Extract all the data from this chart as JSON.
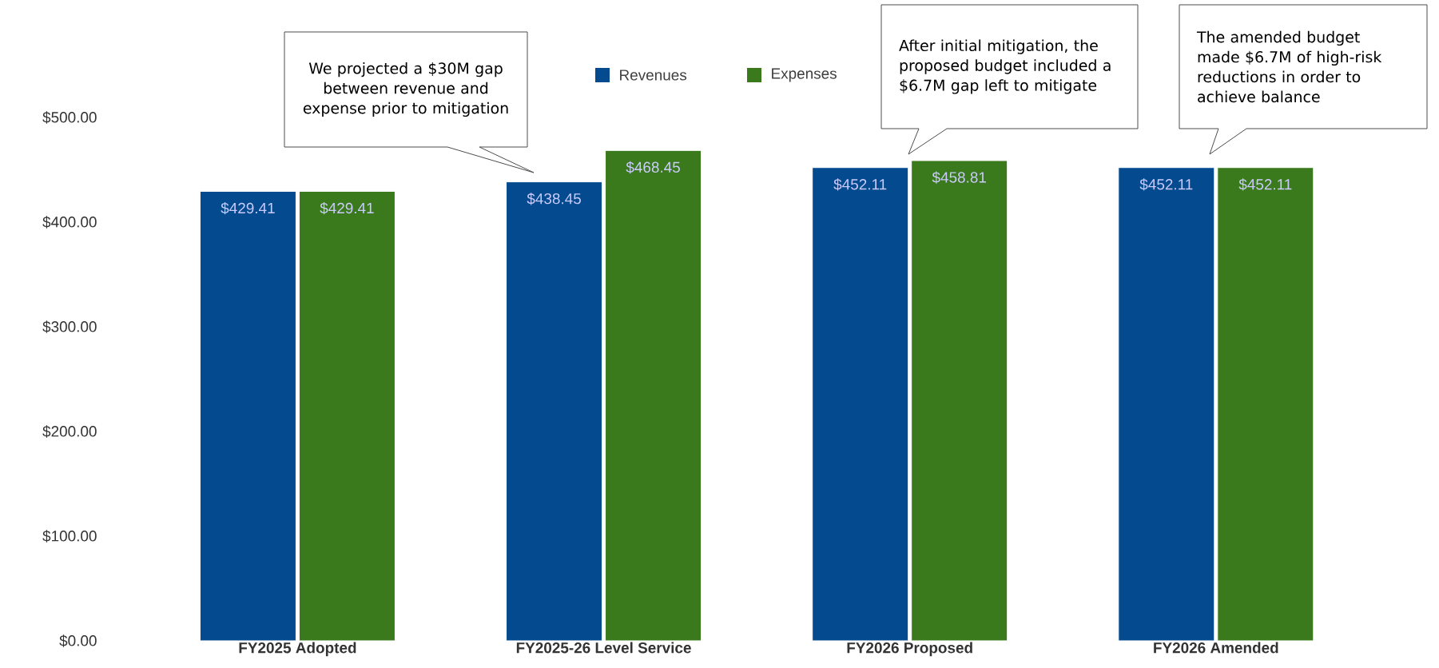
{
  "chart_data": {
    "type": "bar",
    "categories": [
      "FY2025 Adopted",
      "FY2025-26 Level Service",
      "FY2026 Proposed",
      "FY2026 Amended"
    ],
    "series": [
      {
        "name": "Revenues",
        "color": "#034a8e",
        "values": [
          429.41,
          438.45,
          452.11,
          452.11
        ],
        "value_labels": [
          "$429.41",
          "$438.45",
          "$452.11",
          "$452.11"
        ]
      },
      {
        "name": "Expenses",
        "color": "#3a7a1c",
        "values": [
          429.41,
          468.45,
          458.81,
          452.11
        ],
        "value_labels": [
          "$429.41",
          "$468.45",
          "$458.81",
          "$452.11"
        ]
      }
    ],
    "ylim": [
      0,
      500
    ],
    "yticks": [
      {
        "value": 0,
        "label": "$0.00"
      },
      {
        "value": 100,
        "label": "$100.00"
      },
      {
        "value": 200,
        "label": "$200.00"
      },
      {
        "value": 300,
        "label": "$300.00"
      },
      {
        "value": 400,
        "label": "$400.00"
      },
      {
        "value": 500,
        "label": "$500.00"
      }
    ],
    "legend": "top",
    "annotations": [
      "We projected a $30M gap between revenue and expense prior to mitigation",
      "After initial mitigation, the proposed budget included a $6.7M gap left to mitigate",
      "The amended budget made $6.7M of high-risk reductions in order to achieve balance"
    ]
  }
}
